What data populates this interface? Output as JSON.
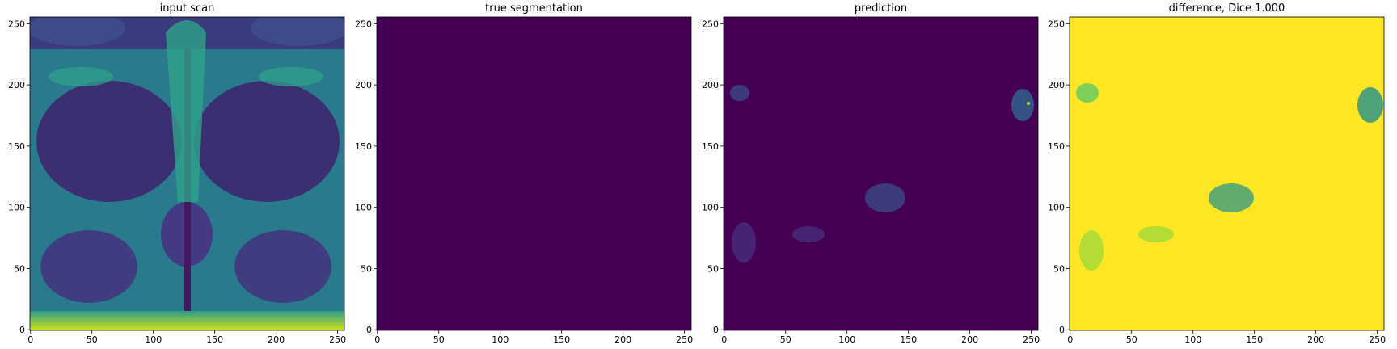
{
  "chart_data": [
    {
      "type": "image",
      "title": "input scan",
      "xlim": [
        -0.5,
        255.5
      ],
      "ylim": [
        255.5,
        -0.5
      ],
      "xticks": [
        0,
        50,
        100,
        150,
        200,
        250
      ],
      "yticks": [
        0,
        50,
        100,
        150,
        200,
        250
      ]
    },
    {
      "type": "image",
      "title": "true segmentation",
      "xlim": [
        -0.5,
        255.5
      ],
      "ylim": [
        255.5,
        -0.5
      ],
      "xticks": [
        0,
        50,
        100,
        150,
        200,
        250
      ],
      "yticks": [
        0,
        50,
        100,
        150,
        200,
        250
      ]
    },
    {
      "type": "image",
      "title": "prediction",
      "xlim": [
        -0.5,
        255.5
      ],
      "ylim": [
        255.5,
        -0.5
      ],
      "xticks": [
        0,
        50,
        100,
        150,
        200,
        250
      ],
      "yticks": [
        0,
        50,
        100,
        150,
        200,
        250
      ]
    },
    {
      "type": "image",
      "title": "difference, Dice 1.000",
      "xlim": [
        -0.5,
        255.5
      ],
      "ylim": [
        255.5,
        -0.5
      ],
      "xticks": [
        0,
        50,
        100,
        150,
        200,
        250
      ],
      "yticks": [
        0,
        50,
        100,
        150,
        200,
        250
      ]
    }
  ]
}
